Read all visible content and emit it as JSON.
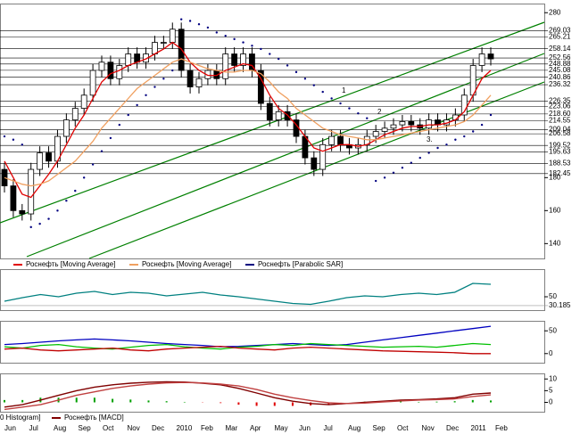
{
  "chart_data": [
    {
      "type": "candlestick",
      "months": [
        "Jun",
        "Jul",
        "Aug",
        "Sep",
        "Oct",
        "Nov",
        "Dec",
        "2010",
        "Feb",
        "Mar",
        "Apr",
        "May",
        "Jun",
        "Jul",
        "Aug",
        "Sep",
        "Oct",
        "Nov",
        "Dec",
        "2011",
        "Feb"
      ],
      "open": [
        185,
        175,
        160,
        158,
        185,
        195,
        190,
        205,
        215,
        222,
        230,
        245,
        250,
        240,
        248,
        255,
        250,
        255,
        262,
        262,
        270,
        245,
        235,
        240,
        245,
        240,
        255,
        248,
        255,
        245,
        225,
        215,
        220,
        215,
        205,
        192,
        185,
        200,
        205,
        200,
        198,
        200,
        205,
        208,
        210,
        212,
        214,
        212,
        210,
        215,
        212,
        215,
        218,
        230,
        248,
        255
      ],
      "high": [
        189,
        179,
        164,
        189,
        199,
        199,
        209,
        219,
        226,
        234,
        249,
        254,
        254,
        252,
        259,
        259,
        259,
        266,
        266,
        274,
        274,
        249,
        244,
        249,
        249,
        259,
        259,
        259,
        259,
        249,
        229,
        224,
        224,
        219,
        209,
        196,
        204,
        209,
        209,
        204,
        204,
        209,
        212,
        214,
        216,
        218,
        218,
        216,
        219,
        219,
        219,
        222,
        234,
        252,
        259,
        259
      ],
      "low": [
        171,
        156,
        154,
        154,
        181,
        186,
        186,
        201,
        211,
        218,
        226,
        241,
        236,
        236,
        244,
        246,
        246,
        251,
        258,
        258,
        241,
        231,
        231,
        236,
        236,
        236,
        244,
        244,
        241,
        221,
        211,
        211,
        211,
        201,
        188,
        181,
        181,
        196,
        196,
        194,
        194,
        196,
        201,
        204,
        206,
        208,
        208,
        206,
        206,
        208,
        208,
        211,
        214,
        226,
        244,
        248
      ],
      "close": [
        175,
        160,
        158,
        185,
        195,
        190,
        205,
        215,
        222,
        230,
        245,
        250,
        240,
        248,
        255,
        250,
        255,
        262,
        262,
        270,
        245,
        235,
        240,
        245,
        240,
        255,
        248,
        255,
        245,
        225,
        215,
        220,
        215,
        205,
        192,
        185,
        200,
        205,
        200,
        198,
        200,
        205,
        208,
        210,
        212,
        214,
        212,
        210,
        215,
        212,
        215,
        218,
        230,
        248,
        255,
        252
      ],
      "series": [
        {
          "name": "Роснефть [Moving Average]",
          "color": "#e00000",
          "style": "line",
          "values": [
            190,
            180,
            170,
            168,
            175,
            182,
            190,
            200,
            210,
            218,
            228,
            238,
            243,
            245,
            248,
            250,
            252,
            255,
            258,
            262,
            258,
            250,
            245,
            242,
            242,
            245,
            247,
            249,
            248,
            240,
            230,
            222,
            218,
            212,
            205,
            198,
            196,
            198,
            200,
            200,
            199,
            200,
            203,
            206,
            208,
            210,
            211,
            211,
            212,
            212,
            213,
            215,
            220,
            230,
            240,
            245
          ]
        },
        {
          "name": "Роснефть [Moving Average]",
          "color": "#f0a060",
          "style": "line",
          "values": [
            180,
            178,
            176,
            175,
            176,
            178,
            182,
            186,
            190,
            196,
            202,
            210,
            216,
            222,
            228,
            234,
            238,
            242,
            246,
            250,
            252,
            250,
            248,
            246,
            245,
            244,
            244,
            245,
            245,
            243,
            238,
            232,
            228,
            222,
            218,
            214,
            210,
            208,
            206,
            205,
            204,
            203,
            203,
            204,
            205,
            206,
            207,
            208,
            209,
            210,
            211,
            212,
            214,
            218,
            224,
            230
          ]
        },
        {
          "name": "Роснефть [Parabolic SAR]",
          "color": "#000080",
          "style": "dots",
          "values": [
            205,
            203,
            200,
            150,
            152,
            155,
            160,
            166,
            172,
            180,
            188,
            196,
            204,
            212,
            218,
            224,
            230,
            235,
            240,
            245,
            276,
            275,
            273,
            271,
            268,
            266,
            264,
            262,
            260,
            258,
            255,
            252,
            248,
            244,
            240,
            236,
            232,
            228,
            225,
            222,
            219,
            216,
            178,
            180,
            183,
            186,
            189,
            192,
            195,
            198,
            200,
            203,
            205,
            208,
            212,
            218
          ]
        }
      ],
      "ylim": [
        131,
        285
      ],
      "yticks": [
        280,
        180,
        160,
        140
      ],
      "levels": [
        269.03,
        265.21,
        258.14,
        252.56,
        248.88,
        245.08,
        240.86,
        236.32,
        226.35,
        223.06,
        {
          "value": 218.6,
          "label": "218.60"
        },
        214.55,
        209.04,
        206.58,
        199.52,
        195.63,
        188.53,
        182.45
      ],
      "annotations": [
        "1",
        "2",
        "3."
      ]
    },
    {
      "type": "line",
      "series": [
        {
          "color": "#008080",
          "values": [
            40,
            48,
            55,
            50,
            58,
            62,
            55,
            60,
            58,
            52,
            56,
            60,
            54,
            50,
            45,
            40,
            35,
            33,
            40,
            48,
            52,
            50,
            55,
            58,
            55,
            60,
            80,
            78
          ]
        }
      ],
      "ylim": [
        20,
        110
      ],
      "yticks": [
        50
      ],
      "levels": [
        30.185
      ]
    },
    {
      "type": "line",
      "series": [
        {
          "color": "#0000c0",
          "values": [
            20,
            22,
            25,
            28,
            30,
            32,
            30,
            28,
            25,
            22,
            20,
            18,
            15,
            16,
            18,
            20,
            22,
            20,
            18,
            20,
            25,
            30,
            35,
            40,
            45,
            50,
            55,
            60
          ]
        },
        {
          "color": "#00c000",
          "values": [
            15,
            12,
            18,
            20,
            15,
            12,
            10,
            14,
            18,
            20,
            15,
            12,
            10,
            14,
            16,
            20,
            18,
            22,
            20,
            18,
            16,
            14,
            15,
            16,
            14,
            18,
            22,
            20
          ]
        },
        {
          "color": "#c00000",
          "values": [
            10,
            12,
            8,
            6,
            8,
            10,
            12,
            8,
            6,
            10,
            12,
            14,
            16,
            12,
            10,
            8,
            12,
            14,
            12,
            10,
            8,
            6,
            5,
            4,
            3,
            2,
            0,
            0
          ]
        }
      ],
      "ylim": [
        -20,
        70
      ],
      "yticks": [
        50,
        0
      ]
    },
    {
      "type": "macd",
      "histogram": {
        "name": "0 Histogram]",
        "color": "#00a000",
        "negative_color": "#e00000",
        "values": [
          1,
          1,
          2,
          2,
          2,
          2,
          1.5,
          1.2,
          0.8,
          0.5,
          0.2,
          -0.1,
          -0.3,
          -1,
          -1.5,
          -1.5,
          -1.5,
          -1.3,
          -0.8,
          0,
          0.3,
          0.3,
          0.4,
          0.2,
          0.3,
          0.5,
          1,
          0.8
        ]
      },
      "series": [
        {
          "name": "Роснефть [MACD]",
          "color": "#800000",
          "values": [
            -2,
            -1,
            1,
            3,
            5,
            6.5,
            7.5,
            8.2,
            8.6,
            8.8,
            8.7,
            8.2,
            7.5,
            6,
            4,
            2,
            0.5,
            -0.5,
            -1,
            -0.5,
            0,
            0.5,
            1,
            1.2,
            1.5,
            2,
            3.5,
            4
          ]
        },
        {
          "color": "#c04040",
          "values": [
            -3,
            -2,
            -1,
            1,
            3,
            4.5,
            6,
            7,
            7.8,
            8.3,
            8.5,
            8.3,
            7.8,
            7,
            5.5,
            3.5,
            2,
            0.8,
            -0.2,
            -0.5,
            -0.3,
            0.2,
            0.6,
            1,
            1.2,
            1.5,
            2.5,
            3.2
          ]
        }
      ],
      "ylim": [
        -4,
        12
      ],
      "yticks": [
        10,
        5,
        0
      ]
    }
  ]
}
